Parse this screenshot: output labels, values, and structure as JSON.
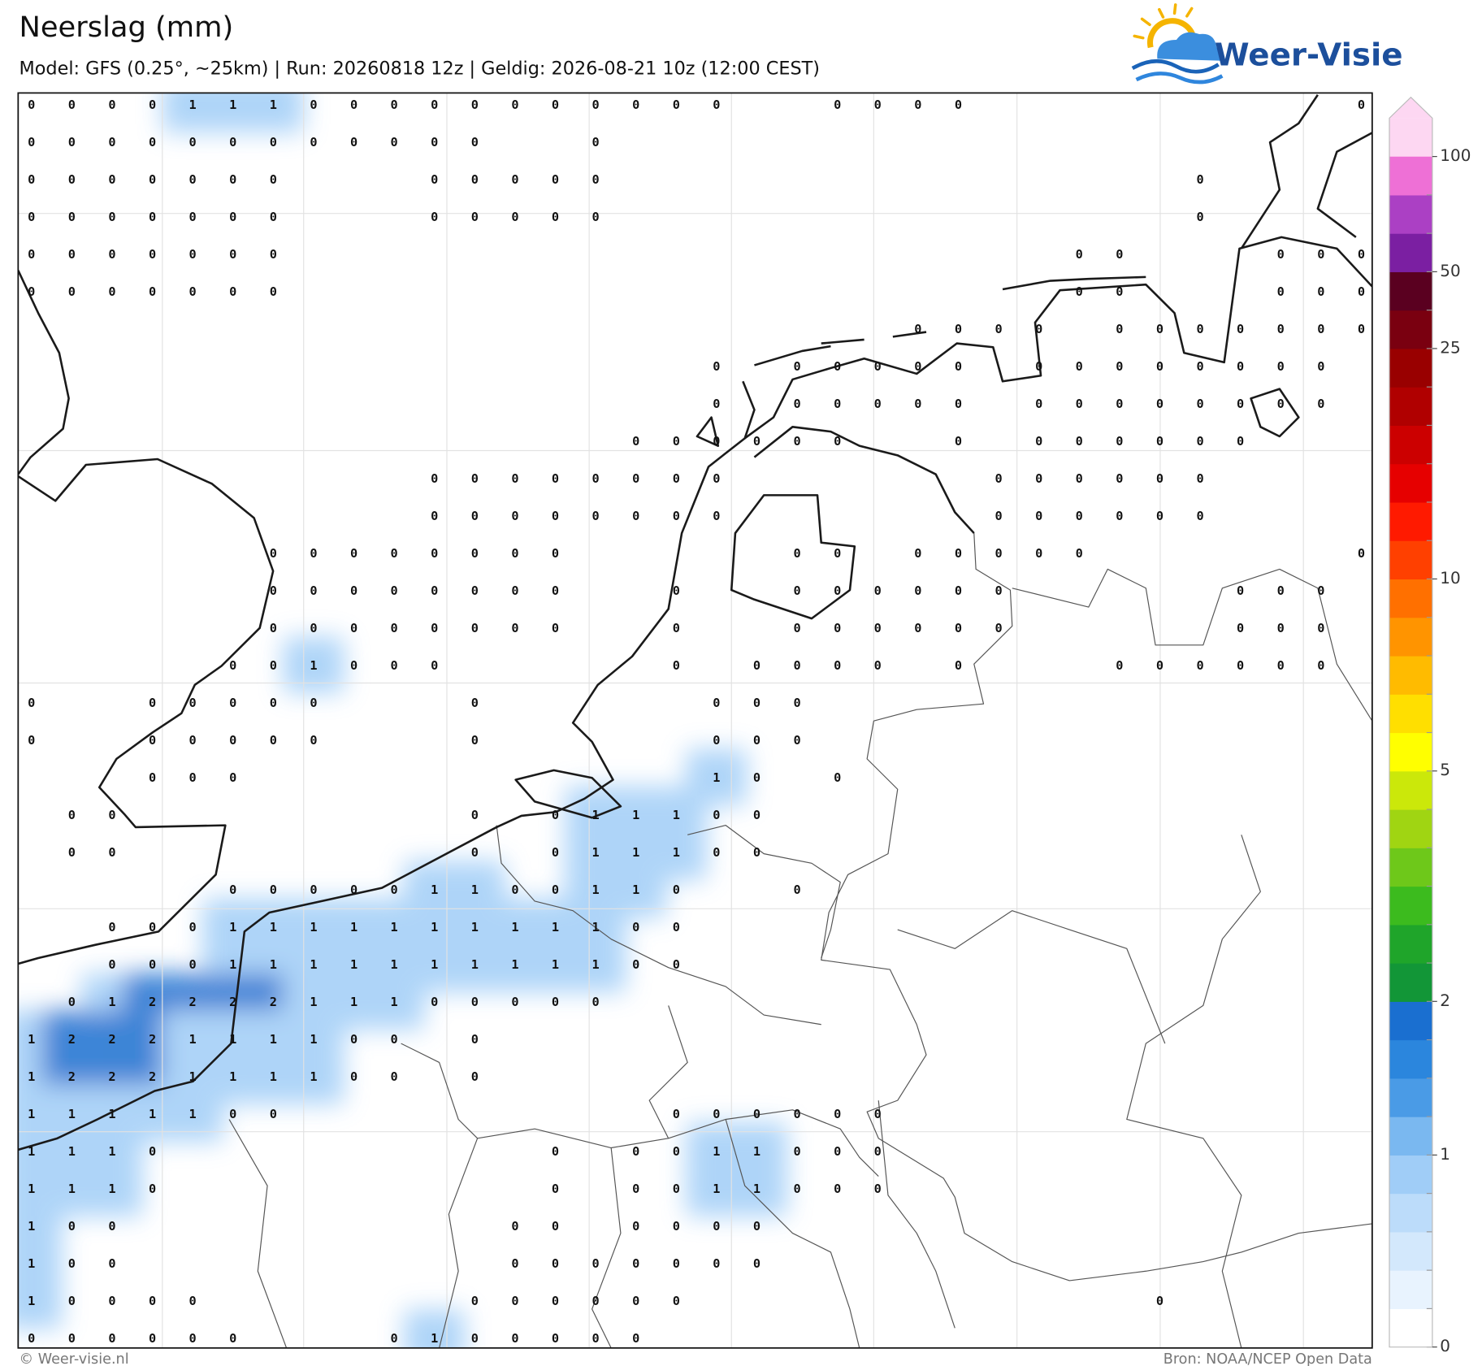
{
  "header": {
    "title": "Neerslag (mm)",
    "subtitle": "Model: GFS (0.25°, ~25km)  |  Run: 20260818 12z  |  Geldig: 2026-08-21 10z (12:00 CEST)"
  },
  "logo": {
    "text": "Weer-Visie"
  },
  "map": {
    "grid": [
      [
        0,
        0,
        0,
        0,
        1,
        1,
        1,
        0,
        0,
        0,
        0,
        0,
        0,
        0,
        0,
        0,
        0,
        0,
        null,
        null,
        0,
        0,
        0,
        0,
        null,
        null,
        null,
        null,
        null,
        null,
        null,
        null,
        null,
        0
      ],
      [
        0,
        0,
        0,
        0,
        0,
        0,
        0,
        0,
        0,
        0,
        0,
        0,
        null,
        null,
        0,
        null,
        null,
        null,
        null,
        null,
        null,
        null,
        null,
        null,
        null,
        null,
        null,
        null,
        null,
        null,
        null,
        null,
        null,
        null
      ],
      [
        0,
        0,
        0,
        0,
        0,
        0,
        0,
        null,
        null,
        null,
        0,
        0,
        0,
        0,
        0,
        null,
        null,
        null,
        null,
        null,
        null,
        null,
        null,
        null,
        null,
        null,
        null,
        null,
        null,
        0,
        null,
        null,
        null,
        null
      ],
      [
        0,
        0,
        0,
        0,
        0,
        0,
        0,
        null,
        null,
        null,
        0,
        0,
        0,
        0,
        0,
        null,
        null,
        null,
        null,
        null,
        null,
        null,
        null,
        null,
        null,
        null,
        null,
        null,
        null,
        0,
        null,
        null,
        null,
        null
      ],
      [
        0,
        0,
        0,
        0,
        0,
        0,
        0,
        null,
        null,
        null,
        null,
        null,
        null,
        null,
        null,
        null,
        null,
        null,
        null,
        null,
        null,
        null,
        null,
        null,
        null,
        null,
        0,
        0,
        null,
        null,
        null,
        0,
        0,
        0
      ],
      [
        0,
        0,
        0,
        0,
        0,
        0,
        0,
        null,
        null,
        null,
        null,
        null,
        null,
        null,
        null,
        null,
        null,
        null,
        null,
        null,
        null,
        null,
        null,
        null,
        null,
        null,
        0,
        0,
        null,
        null,
        null,
        0,
        0,
        0
      ],
      [
        null,
        null,
        null,
        null,
        null,
        null,
        null,
        null,
        null,
        null,
        null,
        null,
        null,
        null,
        null,
        null,
        null,
        null,
        null,
        null,
        null,
        null,
        0,
        0,
        0,
        0,
        null,
        0,
        0,
        0,
        0,
        0,
        0,
        0
      ],
      [
        null,
        null,
        null,
        null,
        null,
        null,
        null,
        null,
        null,
        null,
        null,
        null,
        null,
        null,
        null,
        null,
        null,
        0,
        null,
        0,
        0,
        0,
        0,
        0,
        null,
        0,
        0,
        0,
        0,
        0,
        0,
        0,
        0,
        null
      ],
      [
        null,
        null,
        null,
        null,
        null,
        null,
        null,
        null,
        null,
        null,
        null,
        null,
        null,
        null,
        null,
        null,
        null,
        0,
        null,
        0,
        0,
        0,
        0,
        0,
        null,
        0,
        0,
        0,
        0,
        0,
        0,
        0,
        0,
        null
      ],
      [
        null,
        null,
        null,
        null,
        null,
        null,
        null,
        null,
        null,
        null,
        null,
        null,
        null,
        null,
        null,
        0,
        0,
        0,
        0,
        0,
        0,
        null,
        null,
        0,
        null,
        0,
        0,
        0,
        0,
        0,
        0,
        null,
        null,
        null
      ],
      [
        null,
        null,
        null,
        null,
        null,
        null,
        null,
        null,
        null,
        null,
        0,
        0,
        0,
        0,
        0,
        0,
        0,
        0,
        null,
        null,
        null,
        null,
        null,
        null,
        0,
        0,
        0,
        0,
        0,
        0,
        null,
        null,
        null,
        null
      ],
      [
        null,
        null,
        null,
        null,
        null,
        null,
        null,
        null,
        null,
        null,
        0,
        0,
        0,
        0,
        0,
        0,
        0,
        0,
        null,
        null,
        null,
        null,
        null,
        null,
        0,
        0,
        0,
        0,
        0,
        0,
        null,
        null,
        null,
        null
      ],
      [
        null,
        null,
        null,
        null,
        null,
        null,
        0,
        0,
        0,
        0,
        0,
        0,
        0,
        0,
        null,
        null,
        null,
        null,
        null,
        0,
        0,
        null,
        0,
        0,
        0,
        0,
        0,
        null,
        null,
        null,
        null,
        null,
        null,
        0
      ],
      [
        null,
        null,
        null,
        null,
        null,
        null,
        0,
        0,
        0,
        0,
        0,
        0,
        0,
        0,
        null,
        null,
        0,
        null,
        null,
        0,
        0,
        0,
        0,
        0,
        0,
        null,
        null,
        null,
        null,
        null,
        0,
        0,
        0,
        null
      ],
      [
        null,
        null,
        null,
        null,
        null,
        null,
        0,
        0,
        0,
        0,
        0,
        0,
        0,
        0,
        null,
        null,
        0,
        null,
        null,
        0,
        0,
        0,
        0,
        0,
        0,
        null,
        null,
        null,
        null,
        null,
        0,
        0,
        0,
        null
      ],
      [
        null,
        null,
        null,
        null,
        null,
        0,
        0,
        1,
        0,
        0,
        0,
        null,
        null,
        null,
        null,
        null,
        0,
        null,
        0,
        0,
        0,
        0,
        null,
        0,
        null,
        null,
        null,
        0,
        0,
        0,
        0,
        0,
        0,
        null
      ],
      [
        0,
        null,
        null,
        0,
        0,
        0,
        0,
        0,
        null,
        null,
        null,
        0,
        null,
        null,
        null,
        null,
        null,
        0,
        0,
        0,
        null,
        null,
        null,
        null,
        null,
        null,
        null,
        null,
        null,
        null,
        null,
        null,
        null,
        null
      ],
      [
        0,
        null,
        null,
        0,
        0,
        0,
        0,
        0,
        null,
        null,
        null,
        0,
        null,
        null,
        null,
        null,
        null,
        0,
        0,
        0,
        null,
        null,
        null,
        null,
        null,
        null,
        null,
        null,
        null,
        null,
        null,
        null,
        null,
        null
      ],
      [
        null,
        null,
        null,
        0,
        0,
        0,
        null,
        null,
        null,
        null,
        null,
        null,
        null,
        null,
        null,
        null,
        null,
        1,
        0,
        null,
        0,
        null,
        null,
        null,
        null,
        null,
        null,
        null,
        null,
        null,
        null,
        null,
        null,
        null
      ],
      [
        null,
        0,
        0,
        null,
        null,
        null,
        null,
        null,
        null,
        null,
        null,
        0,
        null,
        0,
        1,
        1,
        1,
        0,
        0,
        null,
        null,
        null,
        null,
        null,
        null,
        null,
        null,
        null,
        null,
        null,
        null,
        null,
        null,
        null
      ],
      [
        null,
        0,
        0,
        null,
        null,
        null,
        null,
        null,
        null,
        null,
        null,
        0,
        null,
        0,
        1,
        1,
        1,
        0,
        0,
        null,
        null,
        null,
        null,
        null,
        null,
        null,
        null,
        null,
        null,
        null,
        null,
        null,
        null,
        null
      ],
      [
        null,
        null,
        null,
        null,
        null,
        0,
        0,
        0,
        0,
        0,
        1,
        1,
        0,
        0,
        1,
        1,
        0,
        null,
        null,
        0,
        null,
        null,
        null,
        null,
        null,
        null,
        null,
        null,
        null,
        null,
        null,
        null,
        null,
        null
      ],
      [
        null,
        null,
        0,
        0,
        0,
        1,
        1,
        1,
        1,
        1,
        1,
        1,
        1,
        1,
        1,
        0,
        0,
        null,
        null,
        null,
        null,
        null,
        null,
        null,
        null,
        null,
        null,
        null,
        null,
        null,
        null,
        null,
        null,
        null
      ],
      [
        null,
        null,
        0,
        0,
        0,
        1,
        1,
        1,
        1,
        1,
        1,
        1,
        1,
        1,
        1,
        0,
        0,
        null,
        null,
        null,
        null,
        null,
        null,
        null,
        null,
        null,
        null,
        null,
        null,
        null,
        null,
        null,
        null,
        null
      ],
      [
        null,
        0,
        1,
        2,
        2,
        2,
        2,
        1,
        1,
        1,
        0,
        0,
        0,
        0,
        0,
        null,
        null,
        null,
        null,
        null,
        null,
        null,
        null,
        null,
        null,
        null,
        null,
        null,
        null,
        null,
        null,
        null,
        null,
        null
      ],
      [
        1,
        2,
        2,
        2,
        1,
        1,
        1,
        1,
        0,
        0,
        null,
        0,
        null,
        null,
        null,
        null,
        null,
        null,
        null,
        null,
        null,
        null,
        null,
        null,
        null,
        null,
        null,
        null,
        null,
        null,
        null,
        null,
        null,
        null
      ],
      [
        1,
        2,
        2,
        2,
        1,
        1,
        1,
        1,
        0,
        0,
        null,
        0,
        null,
        null,
        null,
        null,
        null,
        null,
        null,
        null,
        null,
        null,
        null,
        null,
        null,
        null,
        null,
        null,
        null,
        null,
        null,
        null,
        null,
        null
      ],
      [
        1,
        1,
        1,
        1,
        1,
        0,
        0,
        null,
        null,
        null,
        null,
        null,
        null,
        null,
        null,
        null,
        0,
        0,
        0,
        0,
        0,
        0,
        null,
        null,
        null,
        null,
        null,
        null,
        null,
        null,
        null,
        null,
        null,
        null
      ],
      [
        1,
        1,
        1,
        0,
        null,
        null,
        null,
        null,
        null,
        null,
        null,
        null,
        null,
        0,
        null,
        0,
        0,
        1,
        1,
        0,
        0,
        0,
        null,
        null,
        null,
        null,
        null,
        null,
        null,
        null,
        null,
        null,
        null,
        null
      ],
      [
        1,
        1,
        1,
        0,
        null,
        null,
        null,
        null,
        null,
        null,
        null,
        null,
        null,
        0,
        null,
        0,
        0,
        1,
        1,
        0,
        0,
        0,
        null,
        null,
        null,
        null,
        null,
        null,
        null,
        null,
        null,
        null,
        null,
        null
      ],
      [
        1,
        0,
        0,
        null,
        null,
        null,
        null,
        null,
        null,
        null,
        null,
        null,
        0,
        0,
        null,
        0,
        0,
        0,
        0,
        null,
        null,
        null,
        null,
        null,
        null,
        null,
        null,
        null,
        null,
        null,
        null,
        null,
        null,
        null
      ],
      [
        1,
        0,
        0,
        null,
        null,
        null,
        null,
        null,
        null,
        null,
        null,
        null,
        0,
        0,
        0,
        0,
        0,
        0,
        0,
        null,
        null,
        null,
        null,
        null,
        null,
        null,
        null,
        null,
        null,
        null,
        null,
        null,
        null,
        null
      ],
      [
        1,
        0,
        0,
        0,
        0,
        null,
        null,
        null,
        null,
        null,
        null,
        0,
        0,
        0,
        0,
        0,
        0,
        null,
        null,
        null,
        null,
        null,
        null,
        null,
        null,
        null,
        null,
        null,
        0,
        null,
        null,
        null,
        null,
        null
      ],
      [
        0,
        0,
        0,
        0,
        0,
        0,
        null,
        null,
        null,
        0,
        1,
        0,
        0,
        0,
        0,
        0,
        null,
        null,
        null,
        null,
        null,
        null,
        null,
        null,
        null,
        null,
        null,
        null,
        null,
        null,
        null,
        null,
        null,
        null
      ]
    ]
  },
  "colorbar": {
    "ticks": [
      0,
      1,
      2,
      5,
      10,
      25,
      50,
      100
    ],
    "levels": [
      0,
      0.1,
      0.25,
      0.5,
      0.75,
      1,
      1.25,
      1.5,
      1.75,
      2,
      2.5,
      3,
      3.5,
      4,
      4.5,
      5,
      6,
      7,
      8,
      9,
      10,
      12.5,
      15,
      17.5,
      20,
      22.5,
      25,
      35,
      50,
      65,
      80,
      100
    ],
    "colors": [
      "#ffffff",
      "#e8f3fe",
      "#d3e8fc",
      "#bcdcfa",
      "#a0cdf7",
      "#7ab8f0",
      "#4a9be6",
      "#2b86dd",
      "#1a6fd0",
      "#129637",
      "#1fa52a",
      "#3cbb1e",
      "#6ec81a",
      "#a0d512",
      "#cbe80a",
      "#ffff00",
      "#ffdf00",
      "#ffbb00",
      "#ff9400",
      "#ff7000",
      "#ff4000",
      "#ff1a00",
      "#e60000",
      "#cc0000",
      "#b00000",
      "#990000",
      "#7a0010",
      "#5a0020",
      "#7b1fa2",
      "#ab40c4",
      "#ee70d6"
    ],
    "over_color": "#fdd7f2"
  },
  "footer": {
    "credit": "© Weer-visie.nl",
    "source": "Bron: NOAA/NCEP Open Data"
  }
}
